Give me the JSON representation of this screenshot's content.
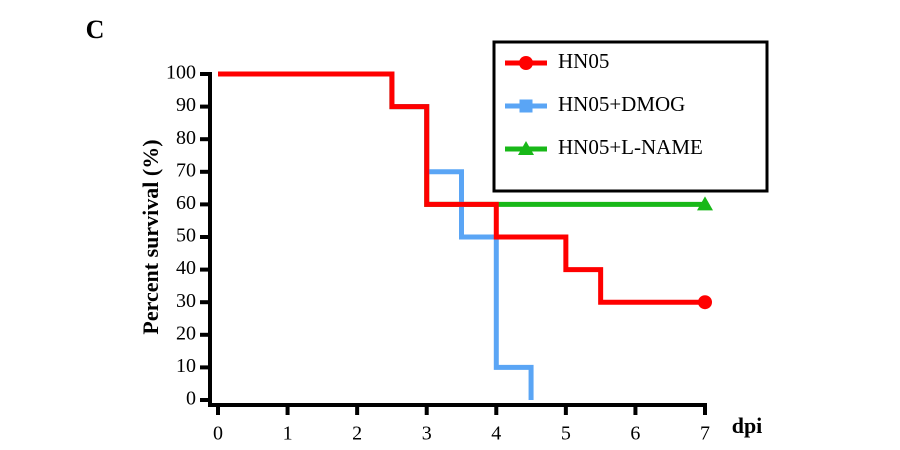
{
  "chart_data": {
    "type": "step",
    "panel_label": "C",
    "xlabel": "dpi",
    "ylabel": "Percent survival (%)",
    "xlim": [
      0,
      7
    ],
    "xticks": [
      0,
      1,
      2,
      3,
      4,
      5,
      6,
      7
    ],
    "ylim": [
      0,
      100
    ],
    "yticks": [
      0,
      10,
      20,
      30,
      40,
      50,
      60,
      70,
      80,
      90,
      100
    ],
    "legend": "upper right",
    "series": [
      {
        "name": "HN05",
        "color": "#ff0000",
        "marker": "circle",
        "x": [
          0,
          2.5,
          3,
          4,
          5,
          5.5,
          7
        ],
        "values": [
          100,
          90,
          60,
          50,
          40,
          30,
          30
        ]
      },
      {
        "name": "HN05+DMOG",
        "color": "#5aa5f5",
        "marker": "square",
        "x": [
          0,
          2.5,
          3,
          3.5,
          4,
          4.5
        ],
        "values": [
          100,
          90,
          70,
          50,
          10,
          0
        ]
      },
      {
        "name": "HN05+L-NAME",
        "color": "#18b818",
        "marker": "triangle",
        "x": [
          0,
          2.5,
          3,
          7
        ],
        "values": [
          100,
          90,
          60,
          60
        ]
      }
    ]
  }
}
